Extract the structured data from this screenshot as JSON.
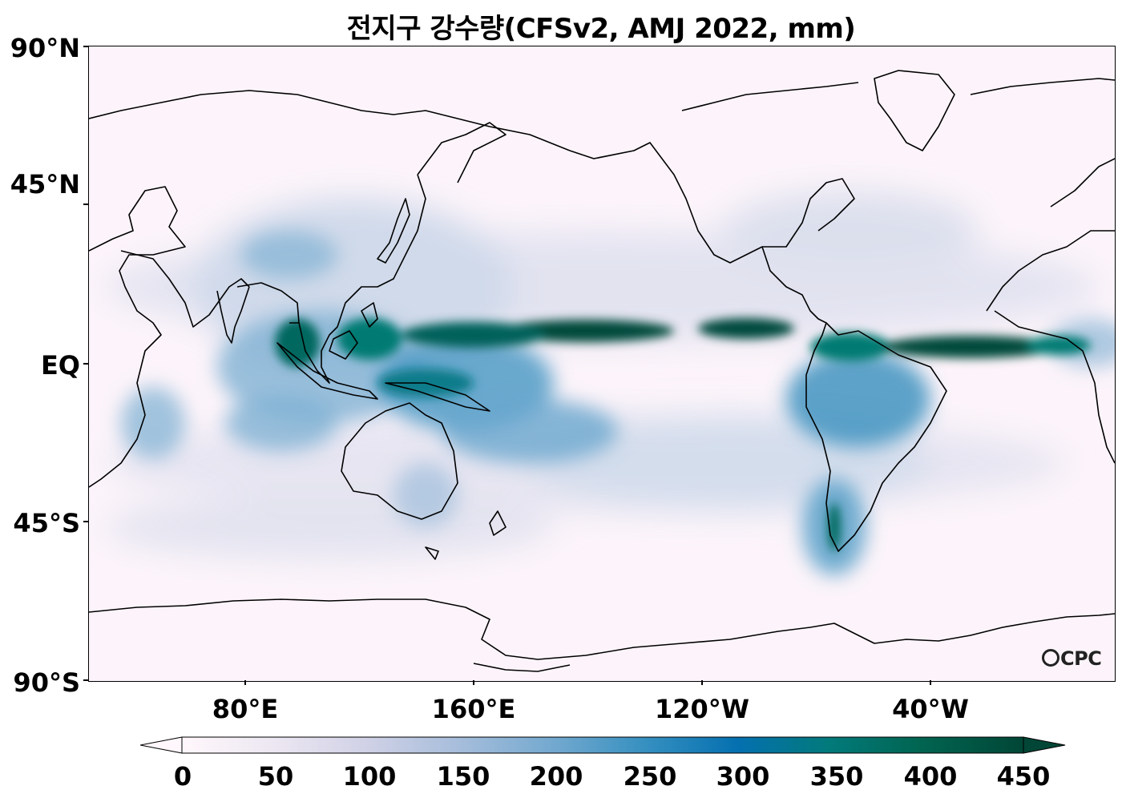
{
  "title": "전지구 강수량(CFSv2, AMJ 2022, mm)",
  "lat_labels": [
    "90°N",
    "45°N",
    "EQ",
    "45°S",
    "90°S"
  ],
  "lon_labels": [
    "80°E",
    "160°E",
    "120°W",
    "40°W"
  ],
  "colorbar": {
    "tick_labels": [
      "0",
      "50",
      "100",
      "150",
      "200",
      "250",
      "300",
      "350",
      "400",
      "450"
    ],
    "colors": [
      "#fff7fb",
      "#ece7f2",
      "#d0d1e6",
      "#a6bddb",
      "#74a9cf",
      "#3690c0",
      "#0570b0",
      "#027a7a",
      "#016450",
      "#014636"
    ],
    "extend": "both"
  },
  "logo": "CPC",
  "colors": {
    "ocean_dry": "#fcf4fa",
    "coast": "#000000",
    "heavy_rain": "#01493a"
  }
}
